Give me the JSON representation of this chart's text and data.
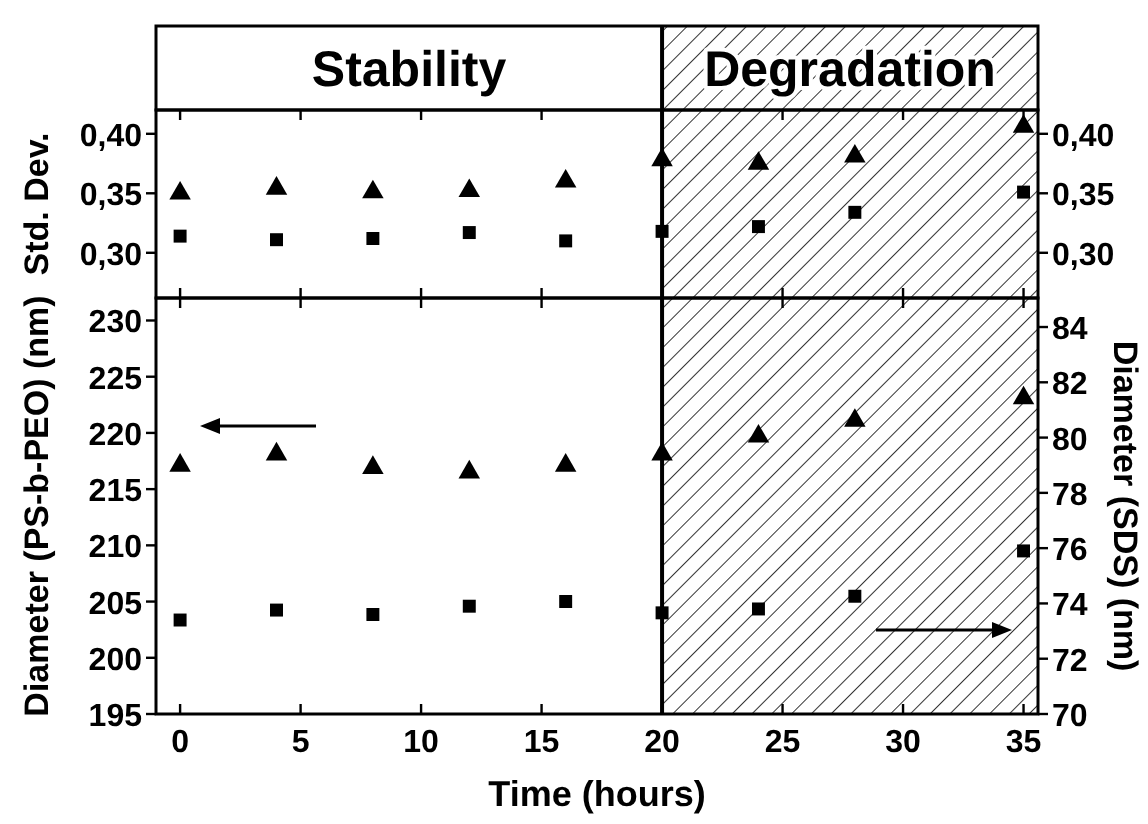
{
  "chart_data": [
    {
      "type": "scatter",
      "ylabel": "Std. Dev.",
      "xlim": [
        -1,
        35.6
      ],
      "xticks": [
        0,
        5,
        10,
        15,
        20,
        25,
        30,
        35
      ],
      "ylim": [
        0.262,
        0.42
      ],
      "yticks": [
        {
          "value": 0.3,
          "label": "0,30"
        },
        {
          "value": 0.35,
          "label": "0,35"
        },
        {
          "value": 0.4,
          "label": "0,40"
        }
      ],
      "y2lim": [
        0.262,
        0.42
      ],
      "y2ticks": [
        {
          "value": 0.3,
          "label": "0,30"
        },
        {
          "value": 0.35,
          "label": "0,35"
        },
        {
          "value": 0.4,
          "label": "0,40"
        }
      ],
      "tick_labels": "y",
      "annotations": [
        "Stability"
      ],
      "x": [
        0,
        4,
        8,
        12,
        16,
        20,
        24,
        28,
        35
      ],
      "series": [
        {
          "color": "#000000",
          "marker": "triangle",
          "values": [
            0.35,
            0.354,
            0.351,
            0.352,
            0.36,
            0.378,
            0.375,
            0.381,
            0.406
          ]
        },
        {
          "color": "#000000",
          "marker": "square",
          "values": [
            0.314,
            0.311,
            0.312,
            0.317,
            0.31,
            0.318,
            0.322,
            0.334,
            0.351
          ]
        }
      ],
      "bands": [
        {
          "axis": "x",
          "from": 20,
          "to": 35.6,
          "label": "Degradation",
          "color": "#000000"
        }
      ]
    },
    {
      "type": "scatter",
      "xlabel": "Time (hours)",
      "ylabel": "Diameter (PS-b-PEO) (nm)",
      "y2label": "Diameter (SDS) (nm)",
      "xlim": [
        -1,
        35.6
      ],
      "xticks": [
        0,
        5,
        10,
        15,
        20,
        25,
        30,
        35
      ],
      "ylim": [
        195,
        232
      ],
      "yticks": [
        195,
        200,
        205,
        210,
        215,
        220,
        225,
        230
      ],
      "y2lim": [
        70,
        85.05
      ],
      "y2ticks": [
        70,
        72,
        74,
        76,
        78,
        80,
        82,
        84
      ],
      "x": [
        0,
        4,
        8,
        12,
        16,
        20,
        24,
        28,
        35
      ],
      "series": [
        {
          "color": "#000000",
          "marker": "triangle",
          "values": [
            217.1,
            218.1,
            216.9,
            216.5,
            217.1,
            218.1,
            219.7,
            221.1,
            223.1
          ]
        },
        {
          "color": "#000000",
          "marker": "square",
          "axis": "y2",
          "values": [
            73.4,
            73.76,
            73.6,
            73.9,
            74.07,
            73.66,
            73.8,
            74.26,
            75.9
          ]
        }
      ],
      "bands": [
        {
          "axis": "x",
          "from": 20,
          "to": 35.6,
          "color": "#000000"
        }
      ]
    }
  ]
}
